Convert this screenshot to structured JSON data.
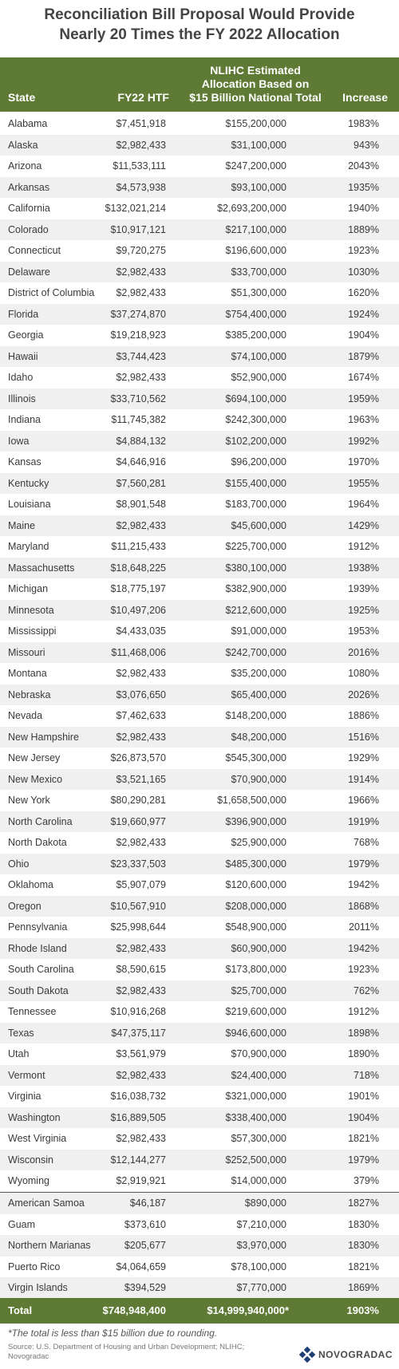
{
  "title_line1": "Reconciliation Bill Proposal Would Provide",
  "title_line2": "Nearly 20 Times the FY 2022 Allocation",
  "chart_data": {
    "type": "table",
    "columns": [
      "State",
      "FY22 HTF",
      "NLIHC Estimated Allocation Based on $15 Billion National Total",
      "Increase"
    ],
    "column_header_lines": {
      "state": "State",
      "fy22": "FY22 HTF",
      "nlihc_1": "NLIHC Estimated",
      "nlihc_2": "Allocation Based on",
      "nlihc_3": "$15 Billion National Total",
      "increase": "Increase"
    },
    "states": [
      [
        "Alabama",
        "$7,451,918",
        "$155,200,000",
        "1983%"
      ],
      [
        "Alaska",
        "$2,982,433",
        "$31,100,000",
        "943%"
      ],
      [
        "Arizona",
        "$11,533,111",
        "$247,200,000",
        "2043%"
      ],
      [
        "Arkansas",
        "$4,573,938",
        "$93,100,000",
        "1935%"
      ],
      [
        "California",
        "$132,021,214",
        "$2,693,200,000",
        "1940%"
      ],
      [
        "Colorado",
        "$10,917,121",
        "$217,100,000",
        "1889%"
      ],
      [
        "Connecticut",
        "$9,720,275",
        "$196,600,000",
        "1923%"
      ],
      [
        "Delaware",
        "$2,982,433",
        "$33,700,000",
        "1030%"
      ],
      [
        "District of Columbia",
        "$2,982,433",
        "$51,300,000",
        "1620%"
      ],
      [
        "Florida",
        "$37,274,870",
        "$754,400,000",
        "1924%"
      ],
      [
        "Georgia",
        "$19,218,923",
        "$385,200,000",
        "1904%"
      ],
      [
        "Hawaii",
        "$3,744,423",
        "$74,100,000",
        "1879%"
      ],
      [
        "Idaho",
        "$2,982,433",
        "$52,900,000",
        "1674%"
      ],
      [
        "Illinois",
        "$33,710,562",
        "$694,100,000",
        "1959%"
      ],
      [
        "Indiana",
        "$11,745,382",
        "$242,300,000",
        "1963%"
      ],
      [
        "Iowa",
        "$4,884,132",
        "$102,200,000",
        "1992%"
      ],
      [
        "Kansas",
        "$4,646,916",
        "$96,200,000",
        "1970%"
      ],
      [
        "Kentucky",
        "$7,560,281",
        "$155,400,000",
        "1955%"
      ],
      [
        "Louisiana",
        "$8,901,548",
        "$183,700,000",
        "1964%"
      ],
      [
        "Maine",
        "$2,982,433",
        "$45,600,000",
        "1429%"
      ],
      [
        "Maryland",
        "$11,215,433",
        "$225,700,000",
        "1912%"
      ],
      [
        "Massachusetts",
        "$18,648,225",
        "$380,100,000",
        "1938%"
      ],
      [
        "Michigan",
        "$18,775,197",
        "$382,900,000",
        "1939%"
      ],
      [
        "Minnesota",
        "$10,497,206",
        "$212,600,000",
        "1925%"
      ],
      [
        "Mississippi",
        "$4,433,035",
        "$91,000,000",
        "1953%"
      ],
      [
        "Missouri",
        "$11,468,006",
        "$242,700,000",
        "2016%"
      ],
      [
        "Montana",
        "$2,982,433",
        "$35,200,000",
        "1080%"
      ],
      [
        "Nebraska",
        "$3,076,650",
        "$65,400,000",
        "2026%"
      ],
      [
        "Nevada",
        "$7,462,633",
        "$148,200,000",
        "1886%"
      ],
      [
        "New Hampshire",
        "$2,982,433",
        "$48,200,000",
        "1516%"
      ],
      [
        "New Jersey",
        "$26,873,570",
        "$545,300,000",
        "1929%"
      ],
      [
        "New Mexico",
        "$3,521,165",
        "$70,900,000",
        "1914%"
      ],
      [
        "New York",
        "$80,290,281",
        "$1,658,500,000",
        "1966%"
      ],
      [
        "North Carolina",
        "$19,660,977",
        "$396,900,000",
        "1919%"
      ],
      [
        "North Dakota",
        "$2,982,433",
        "$25,900,000",
        "768%"
      ],
      [
        "Ohio",
        "$23,337,503",
        "$485,300,000",
        "1979%"
      ],
      [
        "Oklahoma",
        "$5,907,079",
        "$120,600,000",
        "1942%"
      ],
      [
        "Oregon",
        "$10,567,910",
        "$208,000,000",
        "1868%"
      ],
      [
        "Pennsylvania",
        "$25,998,644",
        "$548,900,000",
        "2011%"
      ],
      [
        "Rhode Island",
        "$2,982,433",
        "$60,900,000",
        "1942%"
      ],
      [
        "South Carolina",
        "$8,590,615",
        "$173,800,000",
        "1923%"
      ],
      [
        "South Dakota",
        "$2,982,433",
        "$25,700,000",
        "762%"
      ],
      [
        "Tennessee",
        "$10,916,268",
        "$219,600,000",
        "1912%"
      ],
      [
        "Texas",
        "$47,375,117",
        "$946,600,000",
        "1898%"
      ],
      [
        "Utah",
        "$3,561,979",
        "$70,900,000",
        "1890%"
      ],
      [
        "Vermont",
        "$2,982,433",
        "$24,400,000",
        "718%"
      ],
      [
        "Virginia",
        "$16,038,732",
        "$321,000,000",
        "1901%"
      ],
      [
        "Washington",
        "$16,889,505",
        "$338,400,000",
        "1904%"
      ],
      [
        "West Virginia",
        "$2,982,433",
        "$57,300,000",
        "1821%"
      ],
      [
        "Wisconsin",
        "$12,144,277",
        "$252,500,000",
        "1979%"
      ],
      [
        "Wyoming",
        "$2,919,921",
        "$14,000,000",
        "379%"
      ]
    ],
    "territories": [
      [
        "American Samoa",
        "$46,187",
        "$890,000",
        "1827%"
      ],
      [
        "Guam",
        "$373,610",
        "$7,210,000",
        "1830%"
      ],
      [
        "Northern Marianas",
        "$205,677",
        "$3,970,000",
        "1830%"
      ],
      [
        "Puerto Rico",
        "$4,064,659",
        "$78,100,000",
        "1821%"
      ],
      [
        "Virgin Islands",
        "$394,529",
        "$7,770,000",
        "1869%"
      ]
    ],
    "total": {
      "label": "Total",
      "fy22": "$748,948,400",
      "nlihc": "$14,999,940,000*",
      "increase": "1903%"
    }
  },
  "footnote": "*The total is less than $15 billion due to rounding.",
  "source": "Source: U.S. Department of Housing and Urban Development; NLIHC; Novogradac",
  "logo_text": "NOVOGRADAC",
  "colors": {
    "header_green": "#5e7a35",
    "stripe": "#f0f0f0",
    "logo_blue": "#1d3f73"
  }
}
